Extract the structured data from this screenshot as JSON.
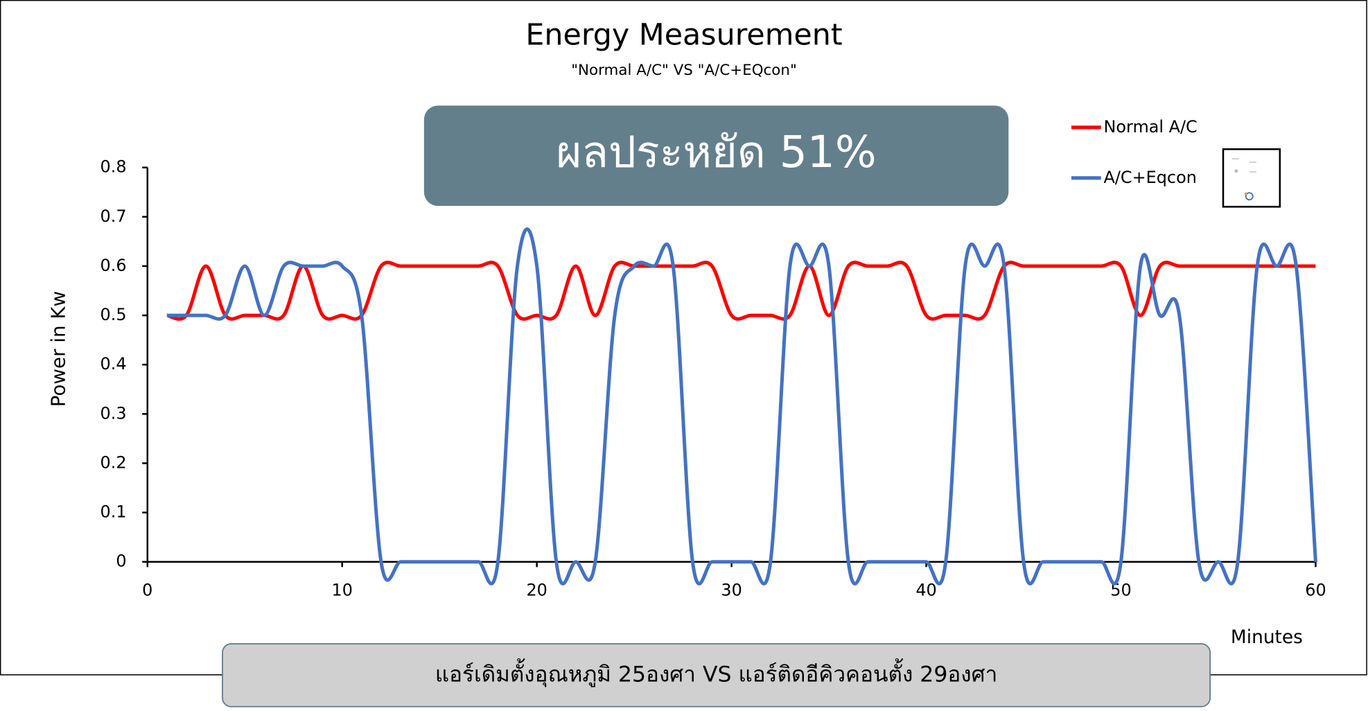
{
  "chart_data": {
    "type": "line",
    "title": "Energy Measurement",
    "subtitle": "\"Normal A/C\" VS \"A/C+EQcon\"",
    "annotations": [
      "ผลประหยัด 51%",
      "แอร์เดิมตั้งอุณหภูมิ 25องศา VS แอร์ติดอีคิวคอนตั้ง 29องศา"
    ],
    "xlabel": "Minutes",
    "ylabel": "Power in Kw",
    "x": [
      1,
      2,
      3,
      4,
      5,
      6,
      7,
      8,
      9,
      10,
      11,
      12,
      13,
      14,
      15,
      16,
      17,
      18,
      19,
      20,
      21,
      22,
      23,
      24,
      25,
      26,
      27,
      28,
      29,
      30,
      31,
      32,
      33,
      34,
      35,
      36,
      37,
      38,
      39,
      40,
      41,
      42,
      43,
      44,
      45,
      46,
      47,
      48,
      49,
      50,
      51,
      52,
      53,
      54,
      55,
      56,
      57,
      58,
      59,
      60
    ],
    "series": [
      {
        "name": "Normal A/C",
        "color": "#ff0000",
        "values": [
          0.5,
          0.5,
          0.6,
          0.5,
          0.5,
          0.5,
          0.5,
          0.6,
          0.5,
          0.5,
          0.5,
          0.6,
          0.6,
          0.6,
          0.6,
          0.6,
          0.6,
          0.6,
          0.5,
          0.5,
          0.5,
          0.6,
          0.5,
          0.6,
          0.6,
          0.6,
          0.6,
          0.6,
          0.6,
          0.5,
          0.5,
          0.5,
          0.5,
          0.6,
          0.5,
          0.6,
          0.6,
          0.6,
          0.6,
          0.5,
          0.5,
          0.5,
          0.5,
          0.6,
          0.6,
          0.6,
          0.6,
          0.6,
          0.6,
          0.6,
          0.5,
          0.6,
          0.6,
          0.6,
          0.6,
          0.6,
          0.6,
          0.6,
          0.6,
          0.6
        ]
      },
      {
        "name": "A/C+Eqcon",
        "color": "#4472c4",
        "values": [
          0.5,
          0.5,
          0.5,
          0.5,
          0.6,
          0.5,
          0.6,
          0.6,
          0.6,
          0.6,
          0.5,
          0,
          0,
          0,
          0,
          0,
          0,
          0,
          0.6,
          0.6,
          0,
          0,
          0,
          0.5,
          0.6,
          0.6,
          0.6,
          0,
          0,
          0,
          0,
          0,
          0.6,
          0.6,
          0.6,
          0,
          0,
          0,
          0,
          0,
          0,
          0.6,
          0.6,
          0.6,
          0,
          0,
          0,
          0,
          0,
          0,
          0.6,
          0.5,
          0.5,
          0,
          0,
          0,
          0.6,
          0.6,
          0.6,
          0
        ]
      }
    ],
    "xlim": [
      0,
      60
    ],
    "xticks": [
      0,
      10,
      20,
      30,
      40,
      50,
      60
    ],
    "ylim": [
      0,
      0.8
    ],
    "yticks": [
      0,
      0.1,
      0.2,
      0.3,
      0.4,
      0.5,
      0.6,
      0.7,
      0.8
    ],
    "grid": false,
    "legend": "upper right"
  }
}
